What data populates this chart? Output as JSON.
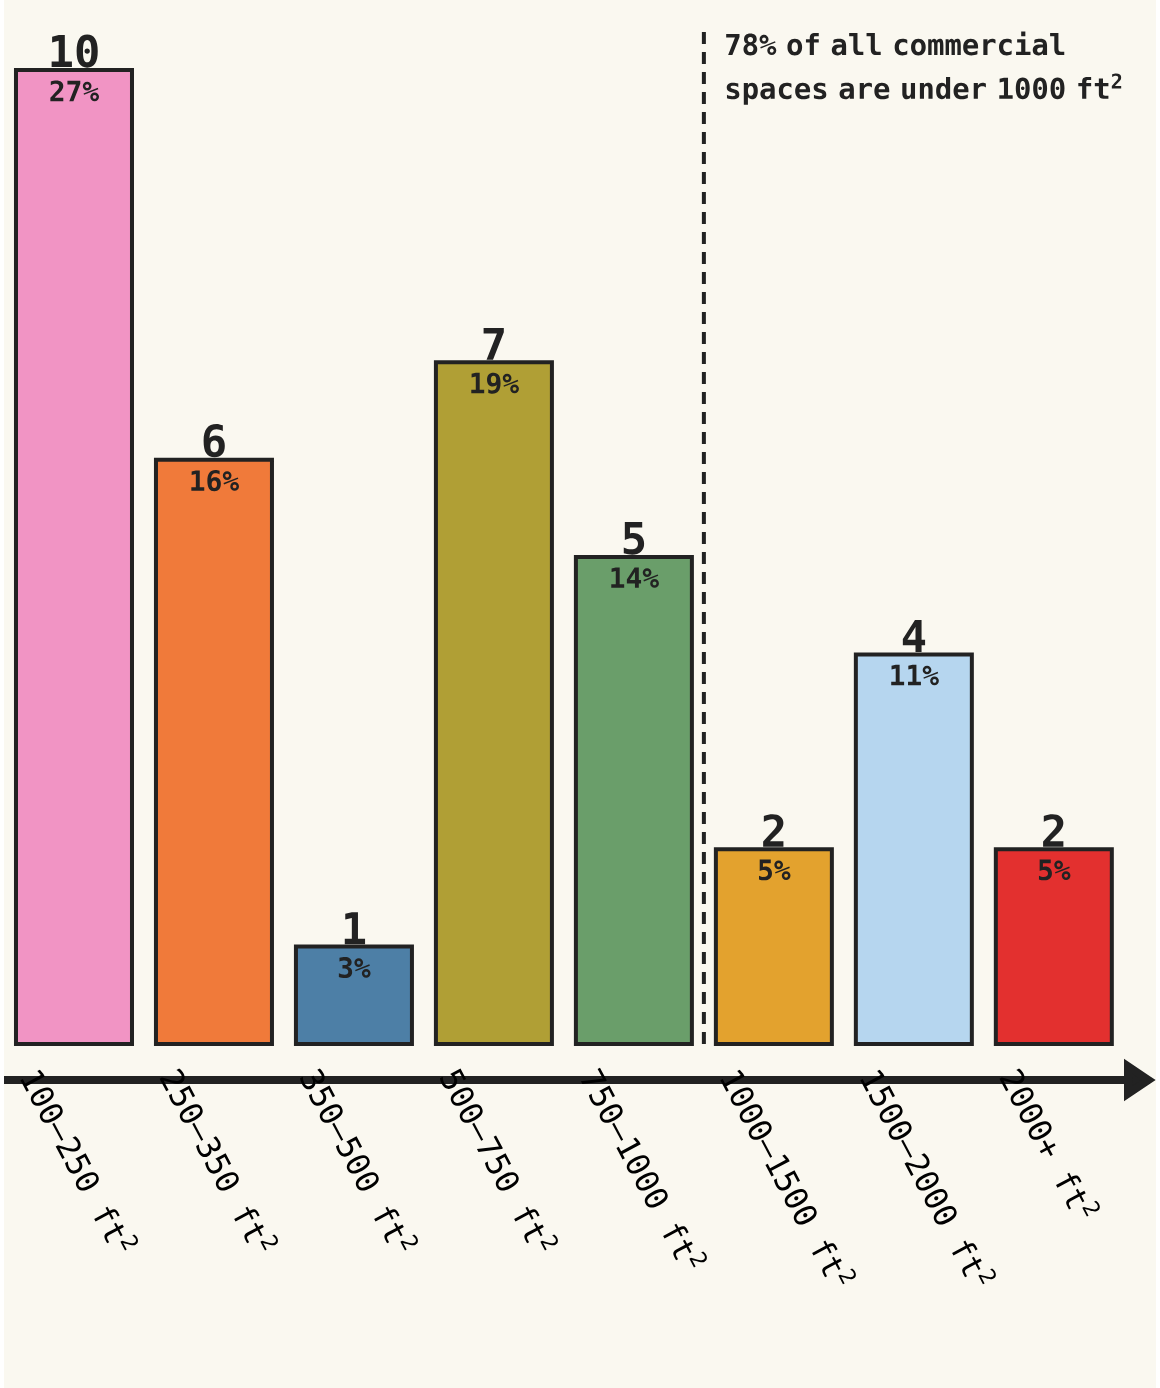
{
  "chart_data": {
    "type": "bar",
    "categories": [
      "100–250 ft$^{2}$",
      "250–350 ft$^{2}$",
      "350–500 ft$^{2}$",
      "500–750 ft$^{2}$",
      "750–1000 ft$^{2}$",
      "1000–1500 ft$^{2}$",
      "1500–2000 ft$^{2}$",
      "2000+ ft$^{2}$"
    ],
    "values": [
      10,
      6,
      1,
      7,
      5,
      2,
      4,
      2
    ],
    "colors": [
      "#f194c4",
      "#f07a3a",
      "#4d7fa6",
      "#b09f35",
      "#6a9e6a",
      "#e3a22e",
      "#b6d6ef",
      "#e3302f"
    ],
    "data_labels": true,
    "annotations": [
      "78% of all commercial spaces are under 1000 ft$^{2}$",
      {
        "text": "27%",
        "x": "100–250 ft$^{2}$",
        "y": 10
      },
      {
        "text": "16%",
        "x": "250–350 ft$^{2}$",
        "y": 6
      },
      {
        "text": "3%",
        "x": "350–500 ft$^{2}$",
        "y": 1
      },
      {
        "text": "19%",
        "x": "500–750 ft$^{2}$",
        "y": 7
      },
      {
        "text": "14%",
        "x": "750–1000 ft$^{2}$",
        "y": 5
      },
      {
        "text": "5%",
        "x": "1000–1500 ft$^{2}$",
        "y": 2
      },
      {
        "text": "11%",
        "x": "1500–2000 ft$^{2}$",
        "y": 4
      },
      {
        "text": "5%",
        "x": "2000+ ft$^{2}$",
        "y": 2
      }
    ],
    "grid": false
  }
}
